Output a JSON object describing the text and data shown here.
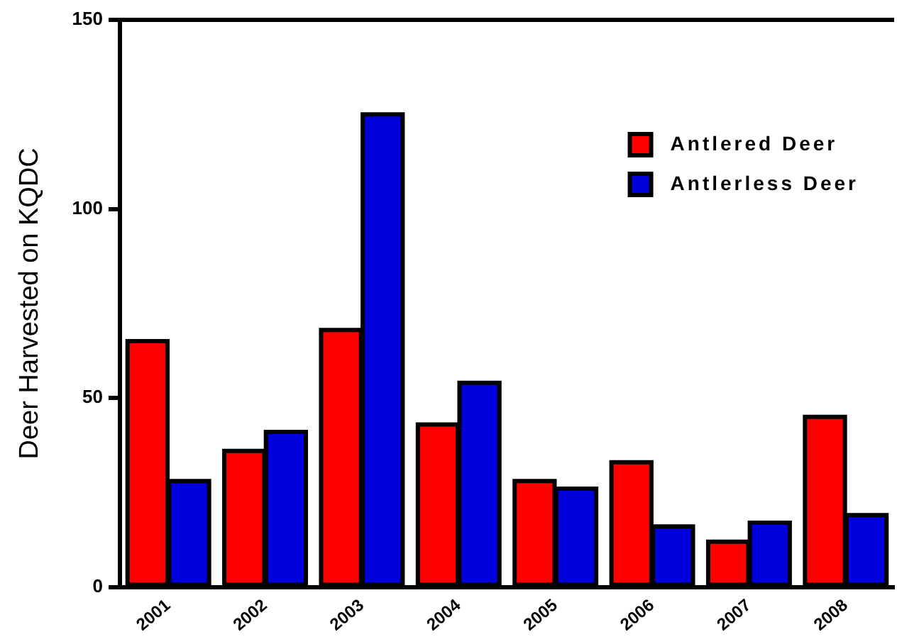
{
  "chart_data": {
    "type": "bar",
    "ylabel": "Deer Harvested on KQDC",
    "categories": [
      "2001",
      "2002",
      "2003",
      "2004",
      "2005",
      "2006",
      "2007",
      "2008"
    ],
    "series": [
      {
        "name": "Antlered Deer",
        "color": "#ff0000",
        "values": [
          65,
          36,
          68,
          43,
          28,
          33,
          12,
          45
        ]
      },
      {
        "name": "Antlerless Deer",
        "color": "#0000dd",
        "values": [
          28,
          41,
          125,
          54,
          26,
          16,
          17,
          19
        ]
      }
    ],
    "ylim": [
      0,
      150
    ],
    "yticks": [
      0,
      50,
      100,
      150
    ],
    "grid": false,
    "legend": "top right"
  }
}
